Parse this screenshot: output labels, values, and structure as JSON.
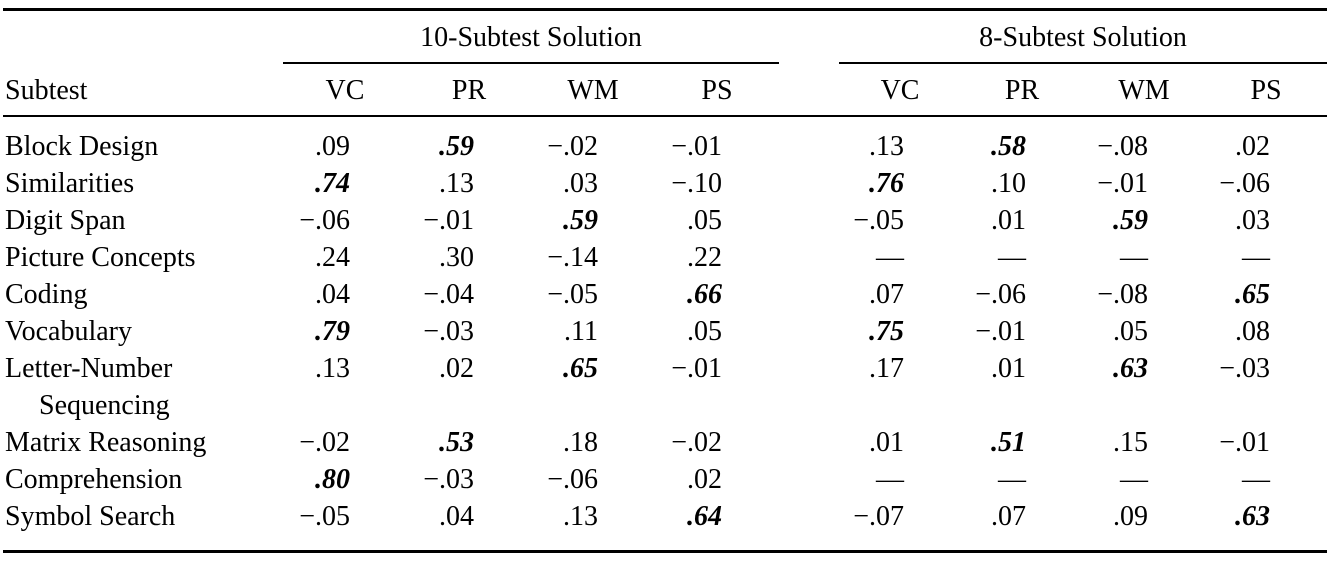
{
  "colors": {
    "text": "#000000",
    "background": "#ffffff",
    "rule": "#000000"
  },
  "table": {
    "row_header": "Subtest",
    "empty_cell_symbol": "—",
    "groups": [
      {
        "label": "10-Subtest Solution",
        "columns": [
          "VC",
          "PR",
          "WM",
          "PS"
        ]
      },
      {
        "label": "8-Subtest Solution",
        "columns": [
          "VC",
          "PR",
          "WM",
          "PS"
        ]
      }
    ],
    "rows": [
      {
        "subtest": "Block Design",
        "values": [
          ".09",
          ".59",
          "−.02",
          "−.01",
          ".13",
          ".58",
          "−.08",
          ".02"
        ],
        "bold": [
          1,
          5
        ]
      },
      {
        "subtest": "Similarities",
        "values": [
          ".74",
          ".13",
          ".03",
          "−.10",
          ".76",
          ".10",
          "−.01",
          "−.06"
        ],
        "bold": [
          0,
          4
        ]
      },
      {
        "subtest": "Digit Span",
        "values": [
          "−.06",
          "−.01",
          ".59",
          ".05",
          "−.05",
          ".01",
          ".59",
          ".03"
        ],
        "bold": [
          2,
          6
        ]
      },
      {
        "subtest": "Picture Concepts",
        "values": [
          ".24",
          ".30",
          "−.14",
          ".22",
          "—",
          "—",
          "—",
          "—"
        ],
        "bold": []
      },
      {
        "subtest": "Coding",
        "values": [
          ".04",
          "−.04",
          "−.05",
          ".66",
          ".07",
          "−.06",
          "−.08",
          ".65"
        ],
        "bold": [
          3,
          7
        ]
      },
      {
        "subtest": "Vocabulary",
        "values": [
          ".79",
          "−.03",
          ".11",
          ".05",
          ".75",
          "−.01",
          ".05",
          ".08"
        ],
        "bold": [
          0,
          4
        ]
      },
      {
        "subtest": "Letter-Number",
        "subtest_line2": "Sequencing",
        "values": [
          ".13",
          ".02",
          ".65",
          "−.01",
          ".17",
          ".01",
          ".63",
          "−.03"
        ],
        "bold": [
          2,
          6
        ]
      },
      {
        "subtest": "Matrix Reasoning",
        "values": [
          "−.02",
          ".53",
          ".18",
          "−.02",
          ".01",
          ".51",
          ".15",
          "−.01"
        ],
        "bold": [
          1,
          5
        ]
      },
      {
        "subtest": "Comprehension",
        "values": [
          ".80",
          "−.03",
          "−.06",
          ".02",
          "—",
          "—",
          "—",
          "—"
        ],
        "bold": [
          0
        ]
      },
      {
        "subtest": "Symbol Search",
        "values": [
          "−.05",
          ".04",
          ".13",
          ".64",
          "−.07",
          ".07",
          ".09",
          ".63"
        ],
        "bold": [
          3,
          7
        ]
      }
    ]
  }
}
